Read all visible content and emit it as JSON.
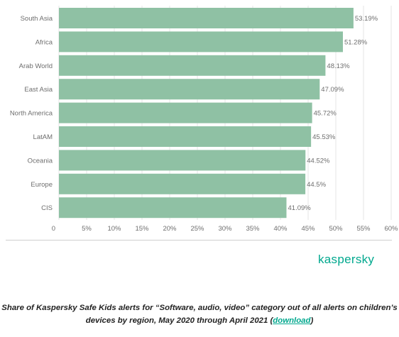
{
  "chart_data": {
    "type": "bar",
    "orientation": "horizontal",
    "categories": [
      "South Asia",
      "Africa",
      "Arab World",
      "East Asia",
      "North America",
      "LatAM",
      "Oceania",
      "Europe",
      "CIS"
    ],
    "values": [
      53.19,
      51.28,
      48.13,
      47.09,
      45.72,
      45.53,
      44.52,
      44.5,
      41.09
    ],
    "value_labels": [
      "53.19%",
      "51.28%",
      "48.13%",
      "47.09%",
      "45.72%",
      "45.53%",
      "44.52%",
      "44.5%",
      "41.09%"
    ],
    "xlim": [
      0,
      60
    ],
    "x_ticks": [
      "0",
      "5%",
      "10%",
      "15%",
      "20%",
      "25%",
      "30%",
      "35%",
      "40%",
      "45%",
      "50%",
      "55%",
      "60%"
    ],
    "grid": true,
    "bar_color": "#8fc1a4"
  },
  "logo": {
    "text": "kaspersky",
    "color": "#00a88e"
  },
  "caption": {
    "text": "Share of Kaspersky Safe Kids alerts for “Software, audio, video” category out of all alerts on children’s devices by region, May 2020 through April 2021 (",
    "link": "download",
    "close": ")"
  }
}
